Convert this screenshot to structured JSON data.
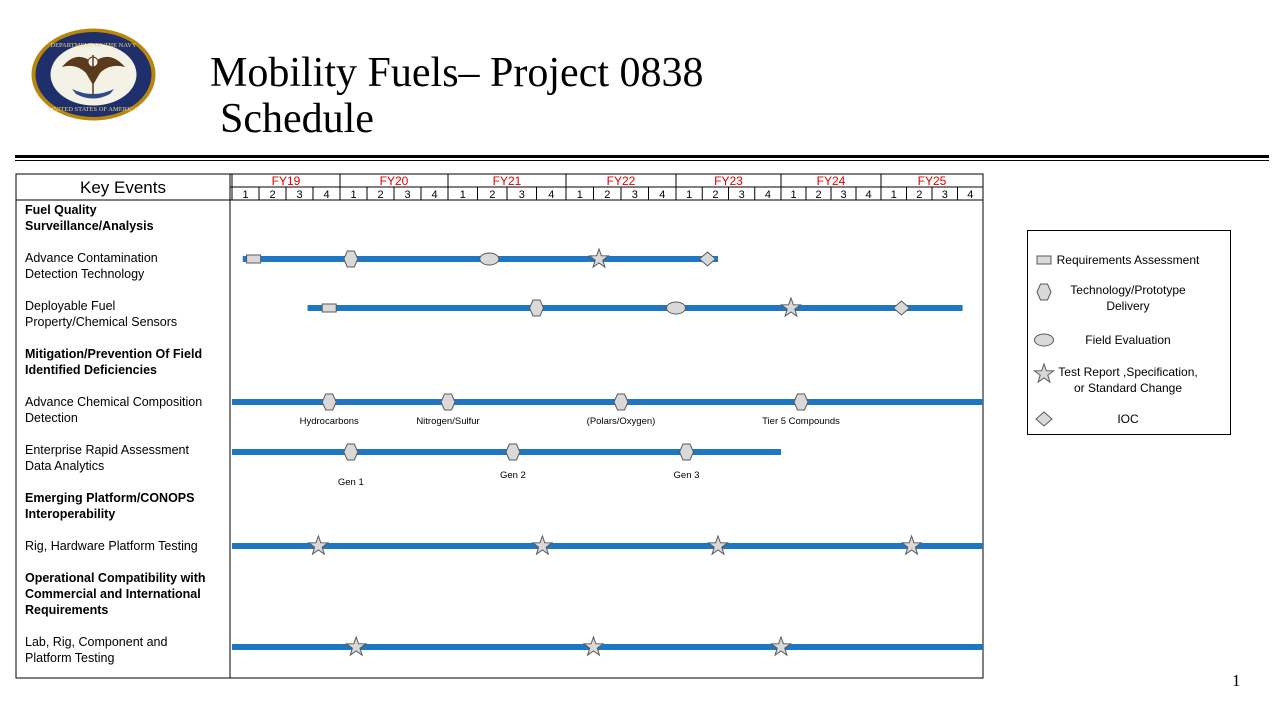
{
  "slide": {
    "title_line1": "Mobility Fuels– Project 0838",
    "title_line2": "Schedule",
    "page_number": "1",
    "seal_text_top": "DEPARTMENT OF THE NAVY",
    "seal_text_bottom": "UNITED STATES OF AMERICA"
  },
  "colors": {
    "bar": "#1f77c4",
    "fy_label": "#e00000",
    "shape_fill": "#d9d9d9",
    "shape_stroke": "#595959"
  },
  "chart_data": {
    "type": "gantt",
    "header_label": "Key Events",
    "fiscal_years": [
      "FY19",
      "FY20",
      "FY21",
      "FY22",
      "FY23",
      "FY24",
      "FY25"
    ],
    "quarters": [
      "1",
      "2",
      "3",
      "4"
    ],
    "rows": [
      {
        "label": [
          "Fuel Quality",
          "Surveillance/Analysis"
        ],
        "bold": true
      },
      {
        "label": [
          "Advance Contamination",
          "Detection Technology"
        ],
        "bold": false,
        "bar": [
          0.1,
          4.4
        ],
        "milestones": [
          {
            "type": "requirements",
            "q": 0.2
          },
          {
            "type": "technology",
            "q": 1.1
          },
          {
            "type": "field",
            "q": 2.35
          },
          {
            "type": "test",
            "q": 3.3
          },
          {
            "type": "ioc",
            "q": 4.3
          }
        ]
      },
      {
        "label": [
          "Deployable Fuel",
          "Property/Chemical Sensors"
        ],
        "bold": false,
        "bar": [
          0.7,
          6.8
        ],
        "milestones": [
          {
            "type": "requirements",
            "q": 0.9
          },
          {
            "type": "technology",
            "q": 2.75
          },
          {
            "type": "field",
            "q": 4.0
          },
          {
            "type": "test",
            "q": 5.1
          },
          {
            "type": "ioc",
            "q": 6.2
          }
        ]
      },
      {
        "label": [
          "Mitigation/Prevention Of Field",
          "Identified Deficiencies"
        ],
        "bold": true
      },
      {
        "label": [
          "Advance Chemical Composition",
          "Detection"
        ],
        "bold": false,
        "bar": [
          0.0,
          7.0
        ],
        "milestones": [
          {
            "type": "technology",
            "q": 0.9,
            "caption": "Hydrocarbons"
          },
          {
            "type": "technology",
            "q": 2.0,
            "caption": "Nitrogen/Sulfur"
          },
          {
            "type": "technology",
            "q": 3.5,
            "caption": "(Polars/Oxygen)"
          },
          {
            "type": "technology",
            "q": 5.2,
            "caption": "Tier 5 Compounds"
          }
        ]
      },
      {
        "label": [
          "Enterprise Rapid Assessment",
          "Data Analytics"
        ],
        "bold": false,
        "bar": [
          0.0,
          5.0
        ],
        "milestones": [
          {
            "type": "technology",
            "q": 1.1,
            "caption": "Gen 1"
          },
          {
            "type": "technology",
            "q": 2.55,
            "caption": "Gen 2"
          },
          {
            "type": "technology",
            "q": 4.1,
            "caption": "Gen 3"
          }
        ]
      },
      {
        "label": [
          "Emerging Platform/CONOPS",
          "Interoperability"
        ],
        "bold": true
      },
      {
        "label": [
          "Rig, Hardware  Platform Testing"
        ],
        "bold": false,
        "bar": [
          0.0,
          7.0
        ],
        "milestones": [
          {
            "type": "test",
            "q": 0.8
          },
          {
            "type": "test",
            "q": 2.8
          },
          {
            "type": "test",
            "q": 4.4
          },
          {
            "type": "test",
            "q": 6.3
          }
        ]
      },
      {
        "label": [
          "Operational Compatibility with",
          "Commercial and International",
          "Requirements"
        ],
        "bold": true
      },
      {
        "label": [
          "Lab, Rig, Component  and",
          "Platform Testing"
        ],
        "bold": false,
        "bar": [
          0.0,
          7.0
        ],
        "milestones": [
          {
            "type": "test",
            "q": 1.15
          },
          {
            "type": "test",
            "q": 3.25
          },
          {
            "type": "test",
            "q": 5.0
          }
        ]
      }
    ],
    "legend": [
      {
        "type": "requirements",
        "label": [
          "Requirements  Assessment"
        ]
      },
      {
        "type": "technology",
        "label": [
          "Technology/Prototype",
          "Delivery"
        ]
      },
      {
        "type": "field",
        "label": [
          "Field Evaluation"
        ]
      },
      {
        "type": "test",
        "label": [
          "Test Report ,Specification,",
          "or Standard Change"
        ]
      },
      {
        "type": "ioc",
        "label": [
          "IOC"
        ]
      }
    ]
  }
}
